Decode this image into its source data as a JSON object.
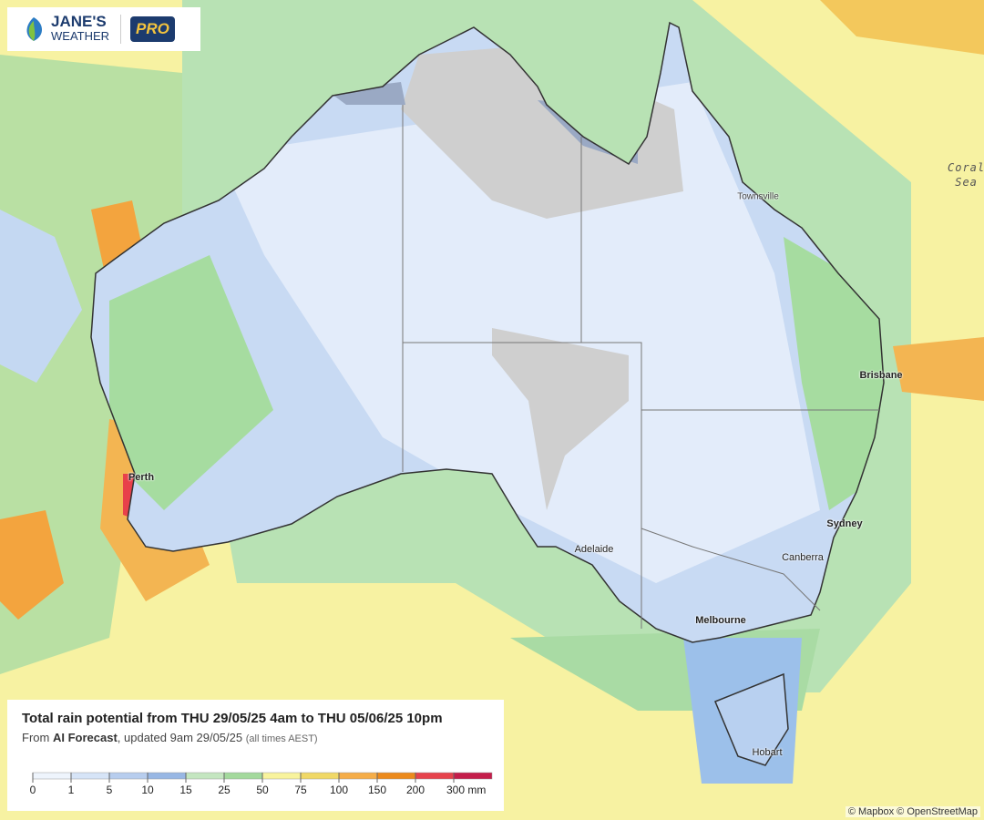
{
  "logo": {
    "brand_top": "JANE'S",
    "brand_bottom": "WEATHER",
    "badge": "PRO"
  },
  "map": {
    "places": [
      "Townsville",
      "Brisbane",
      "Sydney",
      "Canberra",
      "Melbourne",
      "Adelaide",
      "Perth",
      "Hobart"
    ],
    "sea": [
      "Coral",
      "Sea"
    ]
  },
  "legend": {
    "title": "Total rain potential from THU 29/05/25 4am to THU 05/06/25 10pm",
    "subtitle": [
      "From",
      "AI Forecast",
      ", updated 9am 29/05/25",
      "(all times AEST)"
    ],
    "ticks": [
      "0",
      "1",
      "5",
      "10",
      "15",
      "25",
      "50",
      "75",
      "100",
      "150",
      "200",
      "300 mm"
    ]
  },
  "attribution": [
    "© Mapbox",
    "© OpenStreetMap"
  ]
}
